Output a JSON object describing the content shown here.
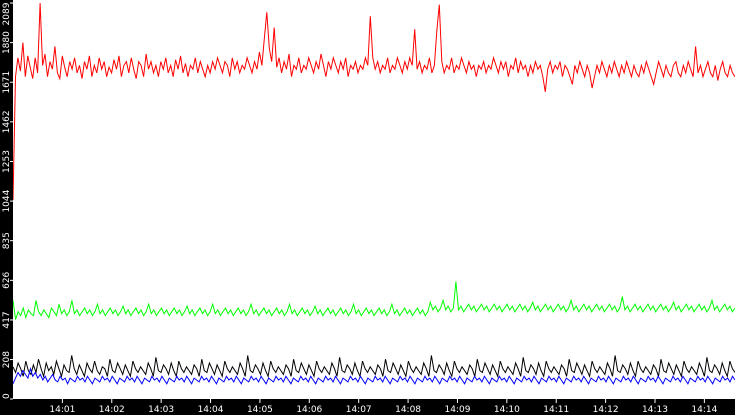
{
  "chart_data": {
    "type": "line",
    "title": "",
    "xlabel": "",
    "ylabel": "",
    "ylim": [
      0,
      2089
    ],
    "y_ticks": [
      {
        "value": 0,
        "label": "0"
      },
      {
        "value": 208,
        "label": "208"
      },
      {
        "value": 417,
        "label": "417"
      },
      {
        "value": 626,
        "label": "626"
      },
      {
        "value": 835,
        "label": "835"
      },
      {
        "value": 1044,
        "label": "1044"
      },
      {
        "value": 1253,
        "label": "1253"
      },
      {
        "value": 1462,
        "label": "1462"
      },
      {
        "value": 1671,
        "label": "1671"
      },
      {
        "value": 1880,
        "label": "1880"
      },
      {
        "value": 2089,
        "label": "2089"
      }
    ],
    "x_ticks": [
      {
        "minute": 1,
        "label": "14:01"
      },
      {
        "minute": 2,
        "label": "14:02"
      },
      {
        "minute": 3,
        "label": "14:03"
      },
      {
        "minute": 4,
        "label": "14:04"
      },
      {
        "minute": 5,
        "label": "14:05"
      },
      {
        "minute": 6,
        "label": "14:06"
      },
      {
        "minute": 7,
        "label": "14:07"
      },
      {
        "minute": 8,
        "label": "14:08"
      },
      {
        "minute": 9,
        "label": "14:09"
      },
      {
        "minute": 10,
        "label": "14:10"
      },
      {
        "minute": 11,
        "label": "14:11"
      },
      {
        "minute": 12,
        "label": "14:12"
      },
      {
        "minute": 13,
        "label": "14:13"
      },
      {
        "minute": 14,
        "label": "14:14"
      }
    ],
    "xlim_minutes": [
      0.0,
      14.62
    ],
    "grid": false,
    "legend": "none",
    "series": [
      {
        "color": "#ff0000",
        "mean": 1760,
        "amplitude": 75,
        "start_from": 1050,
        "values": [
          1050,
          1700,
          1800,
          1730,
          1880,
          1700,
          1810,
          1750,
          1690,
          1800,
          1720,
          2089,
          1760,
          1820,
          1700,
          1780,
          1740,
          1860,
          1720,
          1690,
          1810,
          1750,
          1700,
          1780,
          1740,
          1800,
          1720,
          1760,
          1690,
          1780,
          1740,
          1810,
          1700,
          1760,
          1720,
          1800,
          1740,
          1780,
          1700,
          1750,
          1720,
          1790,
          1740,
          1810,
          1700,
          1760,
          1780,
          1720,
          1800,
          1740,
          1690,
          1780,
          1760,
          1700,
          1820,
          1740,
          1780,
          1720,
          1760,
          1700,
          1780,
          1740,
          1800,
          1720,
          1760,
          1700,
          1790,
          1740,
          1810,
          1720,
          1770,
          1700,
          1760,
          1740,
          1800,
          1720,
          1780,
          1740,
          1700,
          1760,
          1720,
          1780,
          1740,
          1800,
          1760,
          1720,
          1780,
          1760,
          1700,
          1800,
          1740,
          1780,
          1720,
          1760,
          1740,
          1800,
          1760,
          1720,
          1780,
          1740,
          1830,
          1760,
          1900,
          2040,
          1850,
          1780,
          1960,
          1750,
          1800,
          1720,
          1780,
          1740,
          1820,
          1700,
          1760,
          1740,
          1800,
          1720,
          1760,
          1740,
          1800,
          1760,
          1720,
          1780,
          1740,
          1820,
          1760,
          1700,
          1780,
          1740,
          1800,
          1760,
          1720,
          1780,
          1740,
          1800,
          1700,
          1760,
          1740,
          1780,
          1720,
          1760,
          1740,
          1800,
          1760,
          2020,
          1800,
          1740,
          1780,
          1720,
          1760,
          1740,
          1800,
          1720,
          1760,
          1740,
          1800,
          1760,
          1720,
          1780,
          1740,
          1800,
          1760,
          1950,
          1740,
          1780,
          1720,
          1760,
          1740,
          1800,
          1720,
          1760,
          1940,
          2080,
          1780,
          1720,
          1760,
          1740,
          1800,
          1720,
          1760,
          1740,
          1800,
          1760,
          1720,
          1780,
          1740,
          1760,
          1700,
          1760,
          1740,
          1780,
          1720,
          1760,
          1740,
          1800,
          1760,
          1720,
          1780,
          1740,
          1780,
          1700,
          1760,
          1740,
          1800,
          1720,
          1780,
          1740,
          1760,
          1700,
          1760,
          1720,
          1780,
          1740,
          1760,
          1700,
          1620,
          1740,
          1780,
          1720,
          1760,
          1740,
          1780,
          1700,
          1760,
          1740,
          1700,
          1660,
          1760,
          1720,
          1780,
          1740,
          1700,
          1760,
          1720,
          1640,
          1700,
          1760,
          1720,
          1780,
          1740,
          1700,
          1760,
          1720,
          1780,
          1740,
          1700,
          1760,
          1720,
          1780,
          1740,
          1700,
          1760,
          1720,
          1700,
          1760,
          1720,
          1780,
          1740,
          1700,
          1660,
          1720,
          1780,
          1740,
          1700,
          1760,
          1720,
          1700,
          1760,
          1780,
          1720,
          1700,
          1760,
          1720,
          1780,
          1740,
          1700,
          1860,
          1720,
          1760,
          1700,
          1740,
          1780,
          1720,
          1700,
          1760,
          1680,
          1740,
          1780,
          1720,
          1700,
          1760,
          1720,
          1700
        ]
      },
      {
        "color": "#00ff00",
        "mean": 475,
        "amplitude": 28,
        "start_from": 520,
        "values": [
          520,
          420,
          460,
          440,
          480,
          430,
          470,
          450,
          440,
          520,
          460,
          440,
          470,
          450,
          430,
          480,
          460,
          440,
          500,
          450,
          470,
          440,
          460,
          520,
          450,
          470,
          440,
          460,
          480,
          450,
          470,
          440,
          460,
          500,
          450,
          470,
          440,
          460,
          480,
          450,
          470,
          440,
          460,
          490,
          450,
          470,
          440,
          460,
          480,
          450,
          470,
          440,
          460,
          500,
          450,
          470,
          440,
          460,
          480,
          450,
          470,
          440,
          460,
          480,
          450,
          470,
          440,
          460,
          490,
          450,
          470,
          440,
          460,
          480,
          450,
          470,
          440,
          460,
          500,
          450,
          470,
          440,
          460,
          480,
          450,
          470,
          440,
          460,
          480,
          450,
          470,
          440,
          460,
          500,
          450,
          470,
          440,
          460,
          480,
          450,
          470,
          440,
          460,
          480,
          450,
          470,
          440,
          460,
          500,
          450,
          470,
          440,
          460,
          480,
          450,
          470,
          440,
          460,
          490,
          450,
          470,
          440,
          460,
          480,
          450,
          470,
          440,
          460,
          480,
          450,
          470,
          440,
          460,
          500,
          450,
          470,
          440,
          460,
          480,
          450,
          470,
          440,
          460,
          480,
          450,
          470,
          440,
          460,
          500,
          450,
          470,
          440,
          460,
          480,
          450,
          470,
          440,
          460,
          480,
          450,
          470,
          440,
          460,
          510,
          470,
          490,
          460,
          480,
          520,
          470,
          490,
          460,
          480,
          620,
          470,
          490,
          460,
          480,
          500,
          470,
          490,
          460,
          480,
          500,
          470,
          490,
          460,
          480,
          500,
          470,
          490,
          460,
          480,
          500,
          470,
          490,
          460,
          480,
          500,
          470,
          490,
          460,
          480,
          510,
          470,
          490,
          460,
          480,
          500,
          470,
          490,
          460,
          480,
          500,
          470,
          490,
          460,
          480,
          520,
          470,
          490,
          460,
          480,
          500,
          470,
          490,
          460,
          480,
          500,
          470,
          490,
          460,
          480,
          500,
          470,
          490,
          460,
          480,
          540,
          470,
          490,
          460,
          480,
          500,
          470,
          490,
          460,
          480,
          500,
          470,
          490,
          460,
          480,
          500,
          470,
          490,
          460,
          480,
          510,
          470,
          490,
          460,
          480,
          500,
          470,
          490,
          460,
          480,
          500,
          470,
          490,
          460,
          480,
          520,
          470,
          490,
          460,
          480,
          500,
          470,
          490,
          460,
          480
        ]
      },
      {
        "color": "#000000",
        "mean": 175,
        "amplitude": 40,
        "start_from": 170,
        "values": [
          170,
          140,
          190,
          160,
          120,
          200,
          150,
          130,
          180,
          140,
          210,
          160,
          120,
          190,
          150,
          170,
          130,
          200,
          160,
          120,
          180,
          150,
          140,
          230,
          160,
          130,
          180,
          150,
          120,
          190,
          160,
          140,
          200,
          150,
          130,
          170,
          160,
          120,
          210,
          150,
          140,
          190,
          160,
          130,
          180,
          150,
          120,
          200,
          160,
          140,
          170,
          150,
          130,
          190,
          160,
          120,
          220,
          150,
          140,
          180,
          160,
          130,
          190,
          150,
          120,
          200,
          160,
          140,
          170,
          150,
          130,
          180,
          160,
          120,
          210,
          150,
          140,
          190,
          160,
          130,
          180,
          150,
          120,
          200,
          160,
          140,
          170,
          150,
          130,
          190,
          160,
          120,
          230,
          150,
          140,
          180,
          160,
          130,
          190,
          150,
          120,
          200,
          160,
          140,
          170,
          150,
          130,
          180,
          160,
          120,
          210,
          150,
          140,
          190,
          160,
          130,
          180,
          150,
          120,
          200,
          160,
          140,
          170,
          150,
          130,
          190,
          160,
          120,
          220,
          150,
          140,
          180,
          160,
          130,
          190,
          150,
          120,
          200,
          160,
          140,
          170,
          150,
          130,
          180,
          160,
          120,
          210,
          150,
          140,
          190,
          160,
          130,
          180,
          150,
          120,
          200,
          160,
          140,
          170,
          150,
          130,
          190,
          160,
          120,
          230,
          150,
          140,
          180,
          160,
          130,
          190,
          150,
          120,
          200,
          160,
          140,
          170,
          150,
          130,
          180,
          160,
          120,
          210,
          150,
          140,
          190,
          160,
          130,
          180,
          150,
          120,
          200,
          160,
          140,
          170,
          150,
          130,
          190,
          160,
          120,
          220,
          150,
          140,
          180,
          160,
          130,
          190,
          150,
          120,
          200,
          160,
          140,
          170,
          150,
          130,
          180,
          160,
          120,
          210,
          150,
          140,
          190,
          160,
          130,
          180,
          150,
          120,
          200,
          160,
          140,
          170,
          150,
          130,
          190,
          160,
          120,
          230,
          150,
          140,
          180,
          160,
          130,
          190,
          150,
          120,
          200,
          160,
          140,
          170,
          150,
          130,
          180,
          160,
          120,
          210,
          150,
          140,
          190,
          160,
          130,
          180,
          150,
          120,
          200,
          160,
          140,
          170,
          150,
          130,
          190,
          160,
          120,
          220,
          150,
          140,
          180,
          160,
          130,
          190,
          150,
          120,
          200,
          160,
          140
        ]
      },
      {
        "color": "#0000ff",
        "mean": 100,
        "amplitude": 20,
        "start_from": 80,
        "values": [
          80,
          110,
          140,
          120,
          150,
          130,
          110,
          160,
          120,
          140,
          110,
          130,
          100,
          120,
          90,
          110,
          130,
          100,
          90,
          120,
          100,
          110,
          80,
          110,
          100,
          90,
          120,
          100,
          110,
          90,
          120,
          100,
          80,
          110,
          100,
          90,
          120,
          100,
          110,
          90,
          120,
          100,
          80,
          110,
          100,
          90,
          120,
          100,
          110,
          90,
          120,
          100,
          80,
          110,
          100,
          90,
          120,
          100,
          110,
          90,
          120,
          100,
          80,
          110,
          100,
          90,
          120,
          100,
          110,
          90,
          120,
          100,
          80,
          110,
          100,
          90,
          120,
          100,
          110,
          90,
          120,
          100,
          80,
          110,
          100,
          90,
          120,
          100,
          110,
          90,
          120,
          100,
          80,
          110,
          100,
          90,
          120,
          100,
          110,
          90,
          120,
          100,
          80,
          110,
          100,
          90,
          120,
          100,
          110,
          90,
          120,
          100,
          80,
          110,
          100,
          90,
          120,
          100,
          110,
          90,
          120,
          100,
          80,
          110,
          100,
          90,
          120,
          100,
          110,
          90,
          120,
          100,
          80,
          110,
          100,
          90,
          120,
          100,
          110,
          90,
          120,
          100,
          80,
          110,
          100,
          90,
          120,
          100,
          110,
          90,
          120,
          100,
          80,
          110,
          100,
          90,
          120,
          100,
          110,
          90,
          120,
          100,
          80,
          110,
          100,
          90,
          120,
          100,
          110,
          90,
          120,
          100,
          80,
          110,
          100,
          90,
          120,
          100,
          110,
          90,
          120,
          100,
          80,
          110,
          100,
          90,
          120,
          100,
          110,
          90,
          120,
          100,
          80,
          110,
          100,
          90,
          120,
          100,
          110,
          90,
          120,
          100,
          80,
          110,
          100,
          90,
          120,
          100,
          110,
          90,
          120,
          100,
          80,
          110,
          100,
          90,
          120,
          100,
          110,
          90,
          120,
          100,
          80,
          110,
          100,
          90,
          120,
          100,
          110,
          90,
          120,
          100,
          80,
          110,
          100,
          90,
          120,
          100,
          110,
          90,
          120,
          100,
          80,
          110,
          100,
          90,
          120,
          100,
          110,
          90,
          120,
          100,
          80,
          110,
          100,
          90,
          120,
          100,
          110,
          90,
          120,
          100,
          80,
          110,
          100,
          90,
          120,
          100,
          110,
          90,
          120,
          100,
          80,
          110,
          100,
          90,
          120,
          100,
          110,
          90,
          120,
          100,
          80,
          110,
          100,
          90,
          120,
          100,
          110,
          90,
          120,
          100
        ]
      }
    ]
  }
}
